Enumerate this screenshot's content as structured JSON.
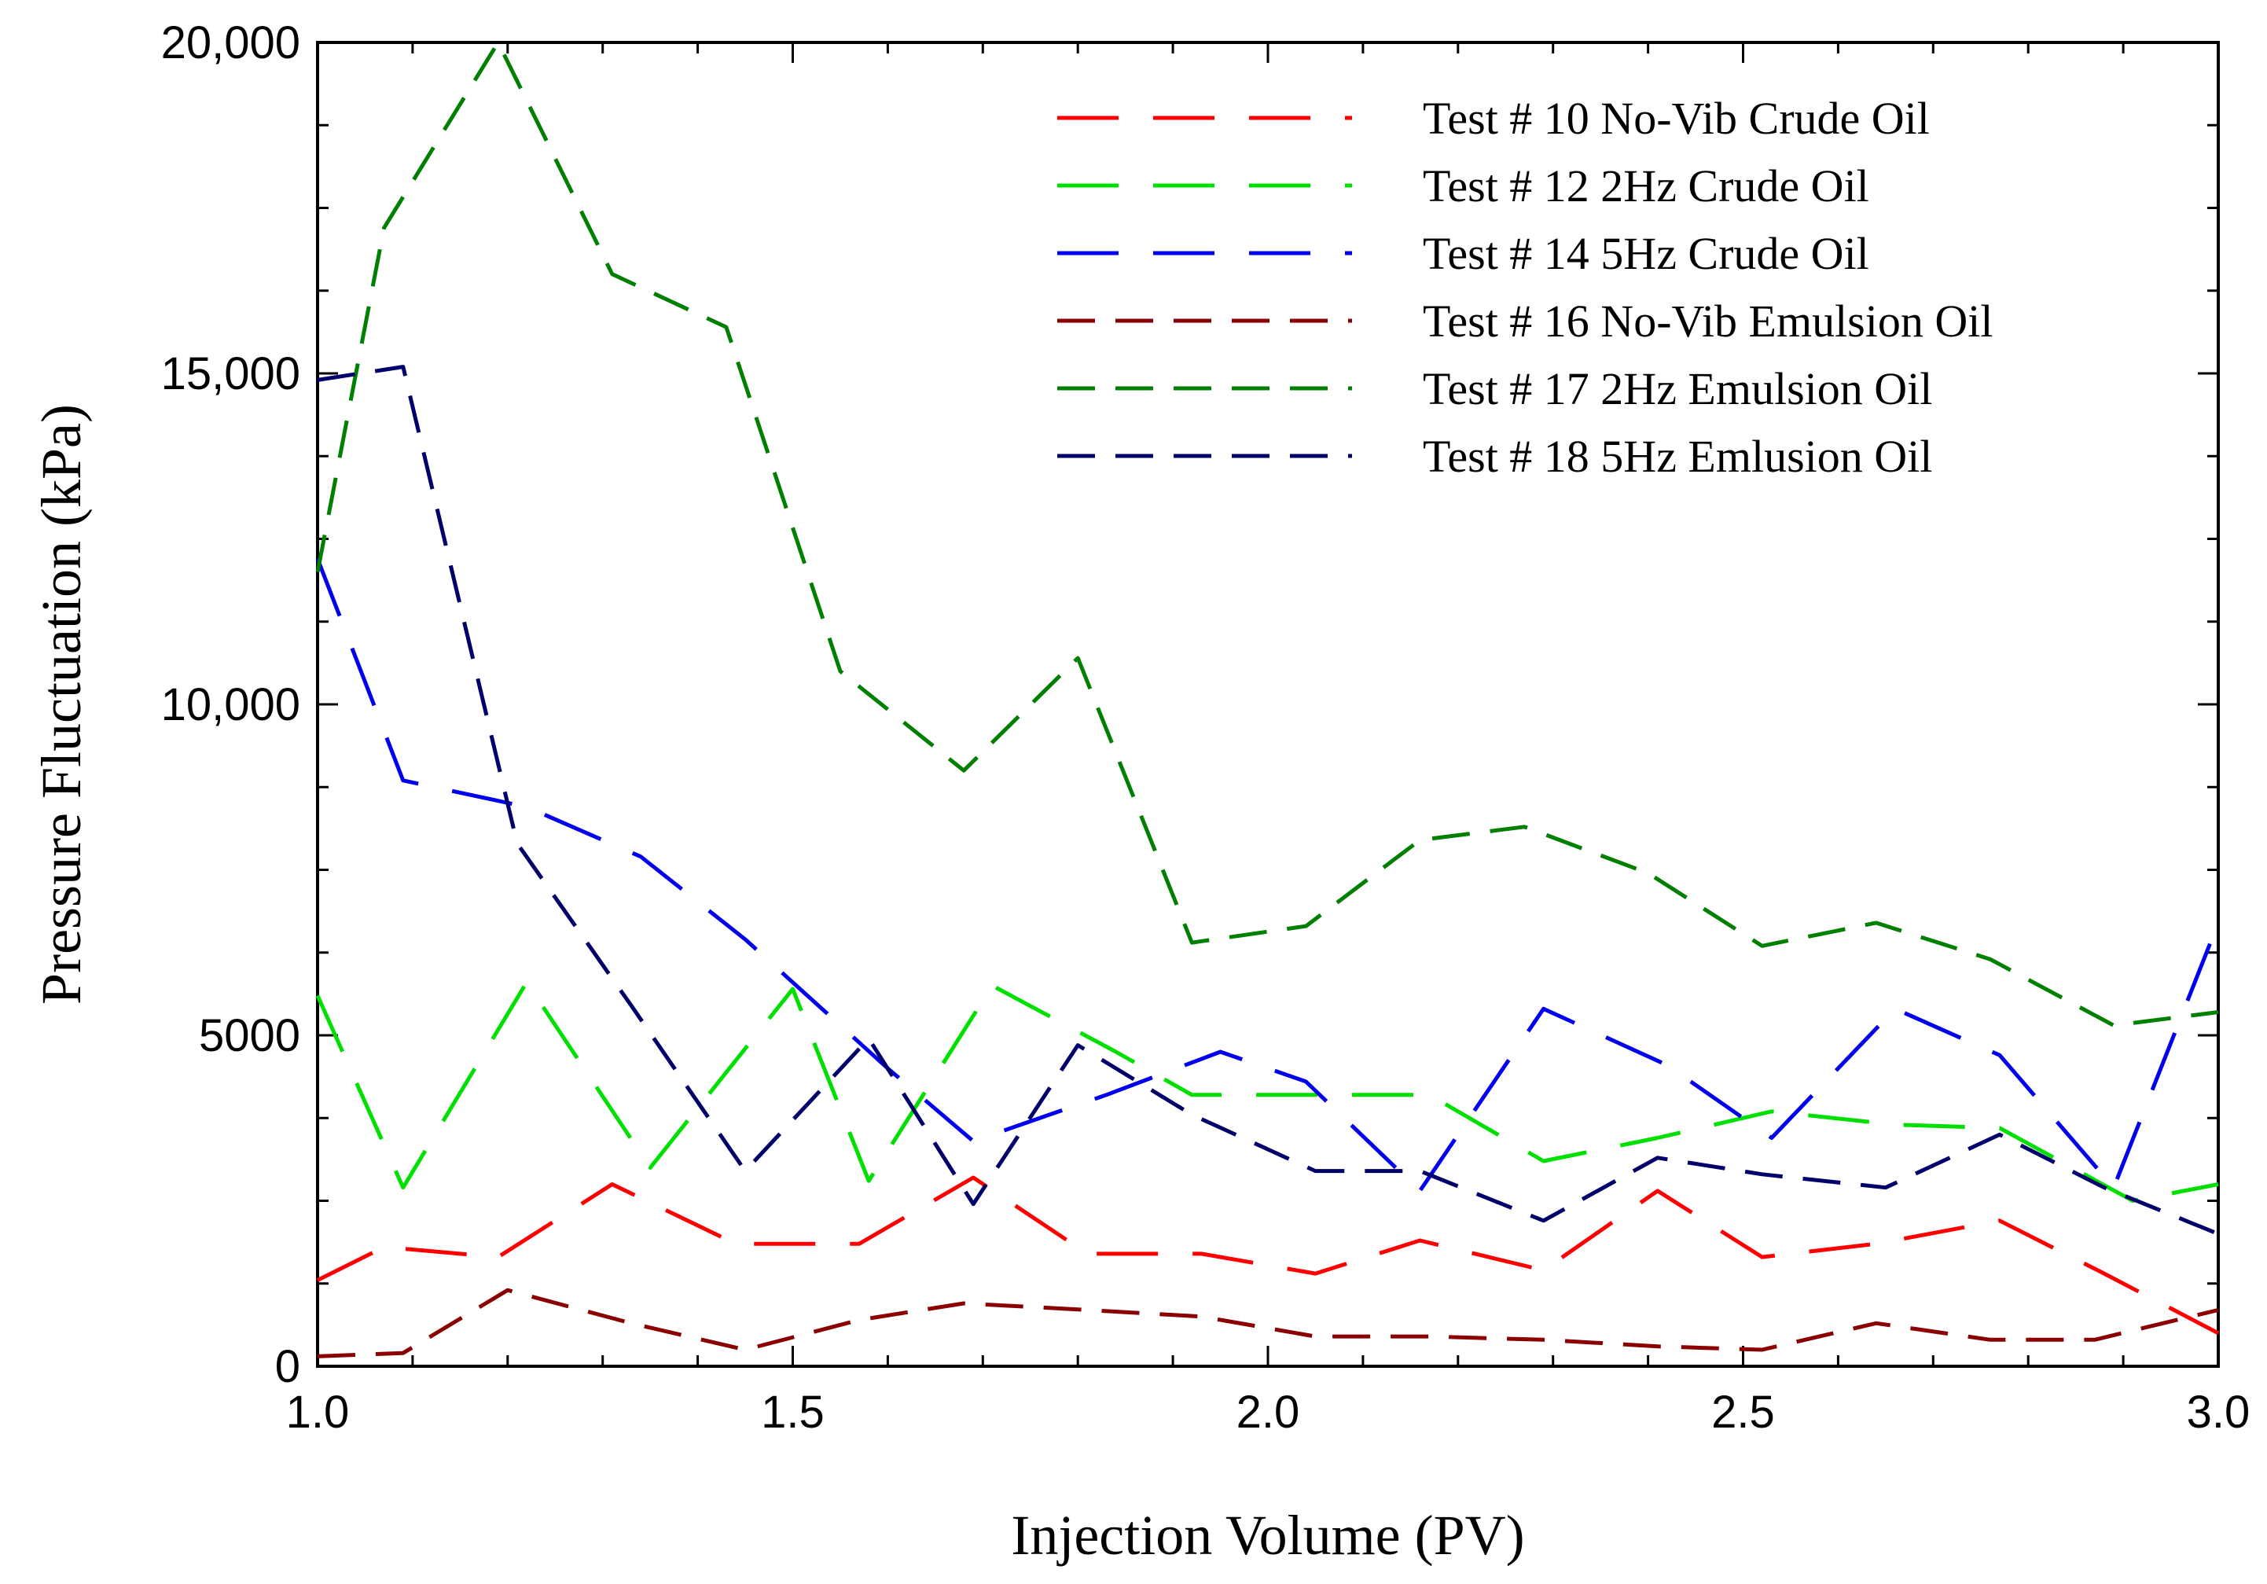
{
  "chart_data": {
    "type": "line",
    "title": "",
    "xlabel": "Injection Volume (PV)",
    "ylabel": "Pressure Fluctuation (kPa)",
    "xlim": [
      1.0,
      3.0
    ],
    "ylim": [
      0,
      20000
    ],
    "x_ticks": [
      {
        "value": 1.0,
        "label": "1.0"
      },
      {
        "value": 1.5,
        "label": "1.5"
      },
      {
        "value": 2.0,
        "label": "2.0"
      },
      {
        "value": 2.5,
        "label": "2.5"
      },
      {
        "value": 3.0,
        "label": "3.0"
      }
    ],
    "y_ticks": [
      {
        "value": 0,
        "label": "0"
      },
      {
        "value": 5000,
        "label": "5000"
      },
      {
        "value": 10000,
        "label": "10,000"
      },
      {
        "value": 15000,
        "label": "15,000"
      },
      {
        "value": 20000,
        "label": "20,000"
      }
    ],
    "legend_position": "top-right",
    "grid": false,
    "series": [
      {
        "name": "Test # 10 No-Vib Crude Oil",
        "color": "#ff0000",
        "dash": "long",
        "x": [
          1.0,
          1.07,
          1.19,
          1.31,
          1.44,
          1.57,
          1.69,
          1.81,
          1.93,
          2.05,
          2.16,
          2.29,
          2.41,
          2.52,
          2.64,
          2.77,
          2.88,
          3.0
        ],
        "y": [
          1300,
          1800,
          1650,
          2750,
          1850,
          1850,
          2850,
          1700,
          1700,
          1400,
          1900,
          1450,
          2650,
          1650,
          1850,
          2200,
          1400,
          500
        ]
      },
      {
        "name": "Test # 12 2Hz Crude Oil",
        "color": "#00e000",
        "dash": "long",
        "x": [
          1.0,
          1.09,
          1.22,
          1.35,
          1.5,
          1.58,
          1.71,
          1.84,
          1.92,
          2.04,
          2.17,
          2.29,
          2.41,
          2.53,
          2.66,
          2.77,
          2.91,
          3.0
        ],
        "y": [
          5600,
          2700,
          5800,
          3000,
          5700,
          2800,
          5750,
          4750,
          4100,
          4100,
          4100,
          3100,
          3450,
          3850,
          3650,
          3600,
          2500,
          2750
        ]
      },
      {
        "name": "Test # 14 5Hz Crude Oil",
        "color": "#0000ee",
        "dash": "long",
        "x": [
          1.0,
          1.09,
          1.22,
          1.34,
          1.45,
          1.6,
          1.69,
          1.83,
          1.95,
          2.04,
          2.16,
          2.29,
          2.42,
          2.53,
          2.66,
          2.77,
          2.89,
          3.0
        ],
        "y": [
          12200,
          8850,
          8450,
          7700,
          6450,
          4500,
          3400,
          4100,
          4750,
          4300,
          2650,
          5400,
          4550,
          3450,
          5400,
          4700,
          2700,
          6700
        ]
      },
      {
        "name": "Test # 16 No-Vib Emulsion Oil",
        "color": "#8b0000",
        "dash": "medium",
        "x": [
          1.0,
          1.09,
          1.2,
          1.33,
          1.45,
          1.57,
          1.68,
          1.81,
          1.93,
          2.05,
          2.17,
          2.29,
          2.41,
          2.52,
          2.64,
          2.76,
          2.87,
          3.0
        ],
        "y": [
          150,
          200,
          1150,
          650,
          250,
          700,
          950,
          850,
          750,
          450,
          450,
          400,
          300,
          250,
          650,
          400,
          400,
          850
        ]
      },
      {
        "name": "Test # 17 2Hz Emulsion Oil",
        "color": "#007f00",
        "dash": "medium",
        "x": [
          1.0,
          1.07,
          1.19,
          1.31,
          1.43,
          1.55,
          1.68,
          1.8,
          1.92,
          2.04,
          2.16,
          2.27,
          2.4,
          2.52,
          2.64,
          2.76,
          2.89,
          3.0
        ],
        "y": [
          12000,
          17200,
          20000,
          16500,
          15700,
          10500,
          9000,
          10700,
          6400,
          6650,
          7950,
          8150,
          7450,
          6350,
          6700,
          6150,
          5150,
          5350
        ]
      },
      {
        "name": "Test # 18 5Hz Emlusion Oil",
        "color": "#00006b",
        "dash": "medium",
        "x": [
          1.0,
          1.09,
          1.21,
          1.33,
          1.45,
          1.58,
          1.69,
          1.8,
          1.92,
          2.05,
          2.16,
          2.29,
          2.41,
          2.52,
          2.65,
          2.77,
          2.88,
          3.0
        ],
        "y": [
          14900,
          15100,
          7900,
          5450,
          2950,
          4950,
          2450,
          4850,
          3800,
          2950,
          2950,
          2200,
          3150,
          2900,
          2700,
          3500,
          2700,
          2000
        ]
      }
    ]
  },
  "legend": {
    "items": [
      {
        "label": "Test # 10 No-Vib Crude Oil"
      },
      {
        "label": "Test # 12 2Hz Crude Oil"
      },
      {
        "label": "Test # 14 5Hz Crude Oil"
      },
      {
        "label": "Test # 16 No-Vib Emulsion Oil"
      },
      {
        "label": "Test # 17 2Hz Emulsion Oil"
      },
      {
        "label": "Test # 18 5Hz Emlusion Oil"
      }
    ]
  }
}
